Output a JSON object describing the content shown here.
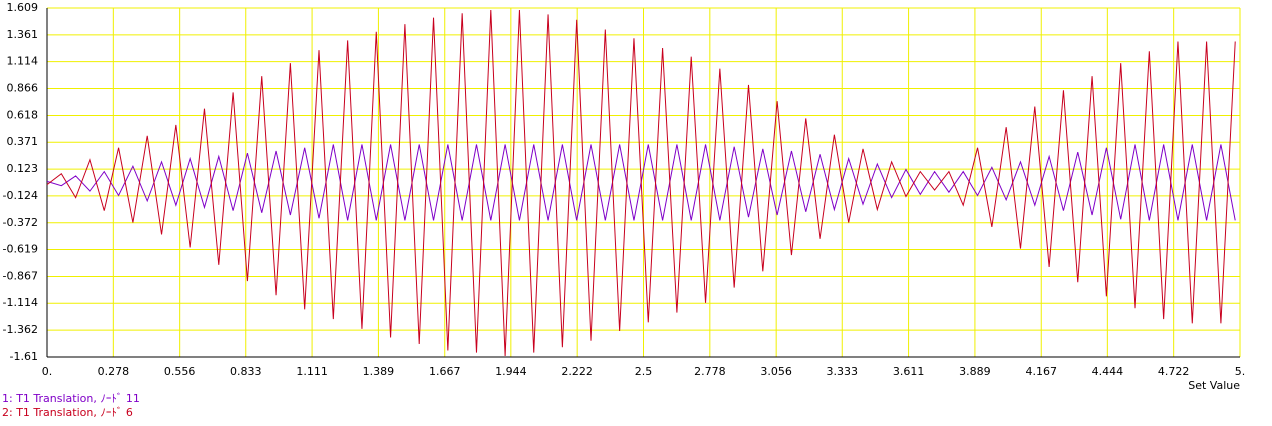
{
  "chart_data": {
    "type": "line",
    "x_label": "Set Value",
    "xlim": [
      0,
      5
    ],
    "ylim": [
      -1.61,
      1.609
    ],
    "grid": true,
    "xticks": [
      {
        "value": 0,
        "label": "0."
      },
      0.278,
      0.556,
      0.833,
      1.111,
      1.389,
      1.667,
      1.944,
      2.222,
      2.5,
      2.778,
      3.056,
      3.333,
      3.611,
      3.889,
      4.167,
      4.444,
      4.722,
      {
        "value": 5,
        "label": "5."
      }
    ],
    "yticks": [
      1.609,
      1.361,
      1.114,
      0.866,
      0.618,
      0.371,
      0.123,
      -0.124,
      -0.372,
      -0.619,
      -0.867,
      -1.114,
      -1.362,
      -1.61
    ],
    "x": [
      0,
      0.06,
      0.12,
      0.18,
      0.24,
      0.3,
      0.36,
      0.42,
      0.48,
      0.54,
      0.6,
      0.66,
      0.72,
      0.78,
      0.84,
      0.9,
      0.96,
      1.02,
      1.08,
      1.14,
      1.2,
      1.26,
      1.32,
      1.38,
      1.44,
      1.5,
      1.56,
      1.62,
      1.68,
      1.74,
      1.8,
      1.86,
      1.92,
      1.98,
      2.04,
      2.1,
      2.16,
      2.22,
      2.28,
      2.34,
      2.4,
      2.46,
      2.52,
      2.58,
      2.64,
      2.7,
      2.76,
      2.82,
      2.88,
      2.94,
      3,
      3.06,
      3.12,
      3.18,
      3.24,
      3.3,
      3.36,
      3.42,
      3.48,
      3.54,
      3.6,
      3.66,
      3.72,
      3.78,
      3.84,
      3.9,
      3.96,
      4.02,
      4.08,
      4.14,
      4.2,
      4.26,
      4.32,
      4.38,
      4.44,
      4.5,
      4.56,
      4.62,
      4.68,
      4.74,
      4.8,
      4.86,
      4.92,
      4.98
    ],
    "series": [
      {
        "name": "1: T1 Translation, ﾉｰﾄﾞ 11",
        "color": "#8000c8",
        "values": [
          0.01,
          -0.03,
          0.06,
          -0.08,
          0.1,
          -0.12,
          0.15,
          -0.17,
          0.19,
          -0.21,
          0.22,
          -0.23,
          0.24,
          -0.26,
          0.27,
          -0.28,
          0.29,
          -0.3,
          0.32,
          -0.33,
          0.35,
          -0.35,
          0.35,
          -0.35,
          0.35,
          -0.35,
          0.35,
          -0.35,
          0.35,
          -0.35,
          0.35,
          -0.35,
          0.35,
          -0.35,
          0.35,
          -0.35,
          0.35,
          -0.35,
          0.35,
          -0.35,
          0.35,
          -0.35,
          0.35,
          -0.35,
          0.35,
          -0.35,
          0.35,
          -0.35,
          0.33,
          -0.32,
          0.31,
          -0.3,
          0.29,
          -0.27,
          0.26,
          -0.25,
          0.22,
          -0.2,
          0.17,
          -0.14,
          0.12,
          -0.11,
          0.1,
          -0.09,
          0.1,
          -0.12,
          0.14,
          -0.16,
          0.19,
          -0.21,
          0.24,
          -0.26,
          0.28,
          -0.3,
          0.32,
          -0.34,
          0.35,
          -0.35,
          0.35,
          -0.35,
          0.35,
          -0.35,
          0.35,
          -0.35
        ]
      },
      {
        "name": "2: T1 Translation, ﾉｰﾄﾞ 6",
        "color": "#c8001e",
        "values": [
          -0.02,
          0.08,
          -0.14,
          0.21,
          -0.26,
          0.32,
          -0.37,
          0.43,
          -0.48,
          0.53,
          -0.6,
          0.68,
          -0.76,
          0.83,
          -0.91,
          0.98,
          -1.04,
          1.1,
          -1.17,
          1.22,
          -1.26,
          1.31,
          -1.35,
          1.39,
          -1.43,
          1.46,
          -1.49,
          1.52,
          -1.55,
          1.56,
          -1.57,
          1.59,
          -1.6,
          1.59,
          -1.57,
          1.55,
          -1.52,
          1.5,
          -1.46,
          1.41,
          -1.37,
          1.33,
          -1.29,
          1.24,
          -1.2,
          1.16,
          -1.11,
          1.05,
          -0.97,
          0.9,
          -0.82,
          0.75,
          -0.67,
          0.59,
          -0.52,
          0.44,
          -0.37,
          0.31,
          -0.25,
          0.19,
          -0.13,
          0.1,
          -0.07,
          0.1,
          -0.21,
          0.32,
          -0.41,
          0.51,
          -0.61,
          0.7,
          -0.78,
          0.85,
          -0.92,
          0.98,
          -1.05,
          1.1,
          -1.16,
          1.21,
          -1.26,
          1.3,
          -1.3,
          1.3,
          -1.3,
          1.3
        ]
      }
    ]
  }
}
